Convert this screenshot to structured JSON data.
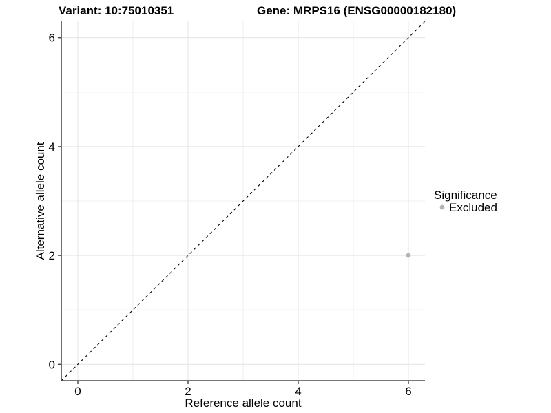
{
  "chart_data": {
    "type": "scatter",
    "title_left": "Variant: 10:75010351",
    "title_right": "Gene: MRPS16 (ENSG00000182180)",
    "xlabel": "Reference allele count",
    "ylabel": "Alternative allele count",
    "xlim": [
      -0.3,
      6.3
    ],
    "ylim": [
      -0.3,
      6.3
    ],
    "xticks": [
      0,
      2,
      4,
      6
    ],
    "yticks": [
      0,
      2,
      4,
      6
    ],
    "x_minor": [
      1,
      3,
      5
    ],
    "y_minor": [
      1,
      3,
      5
    ],
    "grid": true,
    "legend_position": "right",
    "reference_line": {
      "type": "identity",
      "from": [
        -0.3,
        -0.3
      ],
      "to": [
        6.3,
        6.3
      ],
      "style": "dashed",
      "color": "#000000"
    },
    "series": [
      {
        "name": "Excluded",
        "color": "#b3b3b3",
        "points": [
          {
            "x": 6,
            "y": 2
          }
        ]
      }
    ],
    "legend": {
      "title": "Significance",
      "entries": [
        {
          "label": "Excluded",
          "color": "#b3b3b3"
        }
      ]
    }
  },
  "colors": {
    "background": "#ffffff",
    "grid_major": "#e4e4e4",
    "grid_minor": "#efefef",
    "axis_line": "#4a4a4a",
    "tick_mark": "#333333",
    "text": "#000000"
  }
}
